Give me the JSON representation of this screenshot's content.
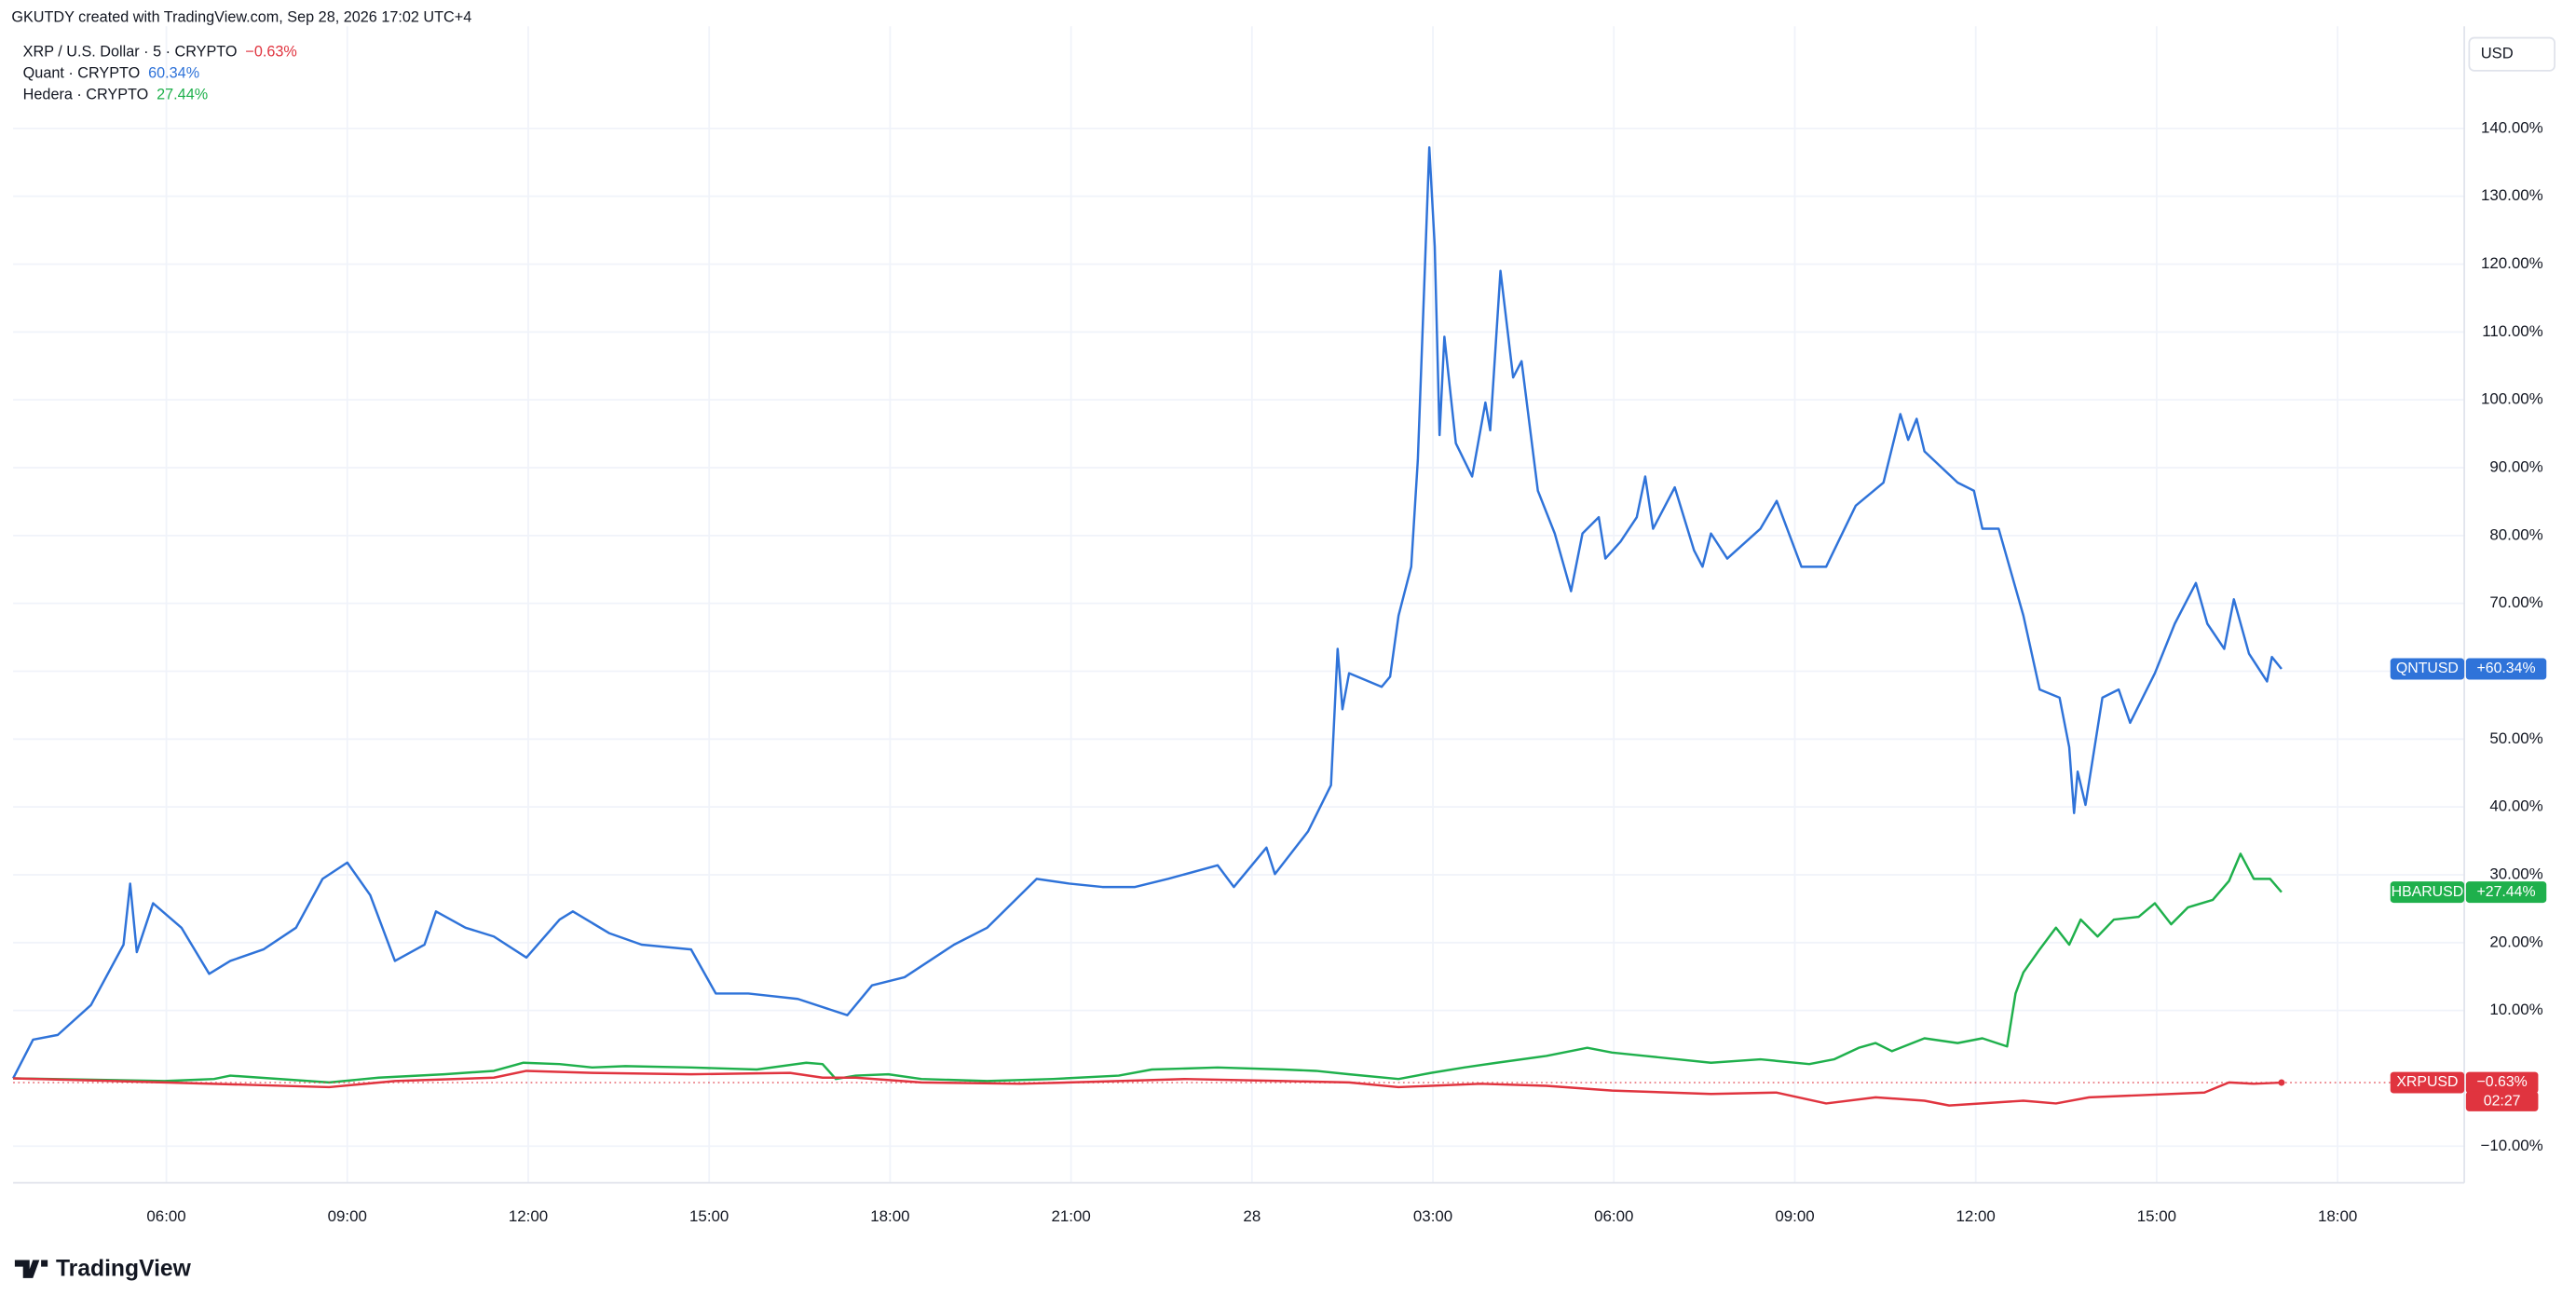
{
  "header": "GKUTDY created with TradingView.com, Sep 28, 2026 17:02 UTC+4",
  "currency_button": "USD",
  "logo": "TradingView",
  "chart_data": {
    "type": "line",
    "xlim": [
      3.46,
      44.1
    ],
    "ylim": [
      -15.4,
      153.6
    ],
    "grid": true,
    "xticks": [
      {
        "value": 6,
        "label": "06:00"
      },
      {
        "value": 9,
        "label": "09:00"
      },
      {
        "value": 12,
        "label": "12:00"
      },
      {
        "value": 15,
        "label": "15:00"
      },
      {
        "value": 18,
        "label": "18:00"
      },
      {
        "value": 21,
        "label": "21:00"
      },
      {
        "value": 24,
        "label": "28"
      },
      {
        "value": 27,
        "label": "03:00"
      },
      {
        "value": 30,
        "label": "06:00"
      },
      {
        "value": 33,
        "label": "09:00"
      },
      {
        "value": 36,
        "label": "12:00"
      },
      {
        "value": 39,
        "label": "15:00"
      },
      {
        "value": 42,
        "label": "18:00"
      }
    ],
    "yticks": [
      {
        "value": -10,
        "label": "−10.00%"
      },
      {
        "value": 10,
        "label": "10.00%"
      },
      {
        "value": 20,
        "label": "20.00%"
      },
      {
        "value": 30,
        "label": "30.00%"
      },
      {
        "value": 40,
        "label": "40.00%"
      },
      {
        "value": 50,
        "label": "50.00%"
      },
      {
        "value": 60,
        "label": "60.00%"
      },
      {
        "value": 70,
        "label": "70.00%"
      },
      {
        "value": 80,
        "label": "80.00%"
      },
      {
        "value": 90,
        "label": "90.00%"
      },
      {
        "value": 100,
        "label": "100.00%"
      },
      {
        "value": 110,
        "label": "110.00%"
      },
      {
        "value": 120,
        "label": "120.00%"
      },
      {
        "value": 130,
        "label": "130.00%"
      },
      {
        "value": 140,
        "label": "140.00%"
      }
    ],
    "series": [
      {
        "name": "XRP / U.S. Dollar · 5 · CRYPTO",
        "legend_value": "−0.63%",
        "ticker": "XRPUSD",
        "change_label": "−0.63%",
        "countdown": "02:27",
        "color": "#e0343f",
        "x": [
          3.46,
          5.97,
          8.7,
          9.79,
          11.43,
          11.97,
          13.06,
          14.7,
          16.34,
          16.88,
          17.43,
          18.52,
          20.16,
          21.79,
          22.88,
          24.52,
          25.61,
          26.43,
          27.79,
          28.88,
          29.97,
          31.61,
          32.7,
          33.52,
          34.34,
          35.15,
          35.56,
          36.79,
          37.33,
          37.88,
          38.7,
          39.79,
          40.2,
          40.61,
          41.07
        ],
        "values": [
          0,
          -0.6,
          -1.3,
          -0.4,
          0.1,
          1.1,
          0.8,
          0.6,
          0.8,
          0.1,
          0.1,
          -0.6,
          -0.8,
          -0.4,
          -0.1,
          -0.4,
          -0.6,
          -1.3,
          -0.8,
          -1.1,
          -1.8,
          -2.3,
          -2.1,
          -3.7,
          -2.8,
          -3.3,
          -4.0,
          -3.3,
          -3.7,
          -2.8,
          -2.5,
          -2.1,
          -0.6,
          -0.8,
          -0.63
        ]
      },
      {
        "name": "Quant · CRYPTO",
        "legend_value": "60.34%",
        "ticker": "QNTUSD",
        "change_label": "+60.34%",
        "color": "#2f73d9",
        "x": [
          3.46,
          3.79,
          4.2,
          4.75,
          5.29,
          5.4,
          5.51,
          5.78,
          6.25,
          6.71,
          7.06,
          7.61,
          8.15,
          8.59,
          9.0,
          9.38,
          9.79,
          10.28,
          10.47,
          10.96,
          11.43,
          11.97,
          12.52,
          12.74,
          13.34,
          13.88,
          14.7,
          15.11,
          15.65,
          16.47,
          17.29,
          17.7,
          18.24,
          19.06,
          19.61,
          20.43,
          20.97,
          21.52,
          22.06,
          22.61,
          23.43,
          23.7,
          24.24,
          24.38,
          24.93,
          25.31,
          25.42,
          25.5,
          25.61,
          26.15,
          26.29,
          26.43,
          26.64,
          26.75,
          26.83,
          26.94,
          27.03,
          27.11,
          27.19,
          27.38,
          27.65,
          27.87,
          27.95,
          28.12,
          28.33,
          28.47,
          28.74,
          29.02,
          29.29,
          29.48,
          29.75,
          29.86,
          30.11,
          30.38,
          30.52,
          30.65,
          31.01,
          31.33,
          31.47,
          31.61,
          31.88,
          32.43,
          32.7,
          33.11,
          33.52,
          34.01,
          34.47,
          34.75,
          34.88,
          35.02,
          35.15,
          35.7,
          35.97,
          36.11,
          36.38,
          36.79,
          37.06,
          37.39,
          37.55,
          37.63,
          37.69,
          37.82,
          38.1,
          38.37,
          38.56,
          38.97,
          39.3,
          39.65,
          39.84,
          40.12,
          40.28,
          40.53,
          40.83,
          40.91,
          41.07
        ],
        "values": [
          0,
          5.7,
          6.4,
          10.8,
          19.7,
          28.7,
          18.6,
          25.8,
          22.2,
          15.4,
          17.3,
          19.0,
          22.2,
          29.4,
          31.8,
          27.0,
          17.3,
          19.7,
          24.6,
          22.2,
          20.9,
          17.8,
          23.4,
          24.6,
          21.4,
          19.7,
          19.0,
          12.5,
          12.5,
          11.7,
          9.3,
          13.7,
          14.9,
          19.7,
          22.2,
          29.4,
          28.7,
          28.2,
          28.2,
          29.4,
          31.4,
          28.2,
          34.0,
          30.1,
          36.4,
          43.2,
          63.3,
          54.4,
          59.7,
          57.7,
          59.2,
          68.2,
          75.4,
          91.2,
          110.5,
          137.2,
          122.6,
          94.8,
          109.3,
          93.6,
          88.7,
          99.6,
          95.5,
          119.0,
          103.3,
          105.7,
          86.6,
          80.3,
          71.8,
          80.3,
          82.7,
          76.6,
          79.1,
          82.7,
          88.7,
          81.0,
          87.1,
          77.8,
          75.4,
          80.3,
          76.6,
          81.0,
          85.1,
          75.4,
          75.4,
          84.4,
          87.8,
          97.9,
          94.1,
          97.2,
          92.4,
          87.8,
          86.6,
          81.0,
          81.0,
          68.2,
          57.3,
          56.1,
          48.8,
          39.1,
          45.2,
          40.3,
          56.1,
          57.3,
          52.4,
          59.7,
          67.0,
          73.0,
          67.0,
          63.3,
          70.6,
          62.6,
          58.5,
          62.1,
          60.34
        ]
      },
      {
        "name": "Hedera · CRYPTO",
        "legend_value": "27.44%",
        "ticker": "HBARUSD",
        "change_label": "+27.44%",
        "color": "#1fb04c",
        "x": [
          3.46,
          5.97,
          6.79,
          7.06,
          8.7,
          9.52,
          10.61,
          11.43,
          11.92,
          12.52,
          13.06,
          13.61,
          14.7,
          15.79,
          16.61,
          16.88,
          17.1,
          17.43,
          17.97,
          18.52,
          19.61,
          20.7,
          21.79,
          22.34,
          23.43,
          24.52,
          25.06,
          25.61,
          26.43,
          26.97,
          27.52,
          28.06,
          28.88,
          29.56,
          29.97,
          30.52,
          31.61,
          32.43,
          33.24,
          33.65,
          34.06,
          34.34,
          34.61,
          35.15,
          35.7,
          36.11,
          36.52,
          36.66,
          36.79,
          37.06,
          37.33,
          37.55,
          37.74,
          38.02,
          38.29,
          38.7,
          38.97,
          39.24,
          39.52,
          39.93,
          40.2,
          40.39,
          40.61,
          40.88,
          41.07
        ],
        "values": [
          0,
          -0.4,
          -0.1,
          0.4,
          -0.6,
          0.1,
          0.6,
          1.1,
          2.3,
          2.1,
          1.6,
          1.8,
          1.6,
          1.3,
          2.3,
          2.1,
          -0.1,
          0.4,
          0.6,
          -0.1,
          -0.4,
          -0.1,
          0.4,
          1.3,
          1.6,
          1.3,
          1.1,
          0.6,
          -0.1,
          0.8,
          1.6,
          2.3,
          3.3,
          4.5,
          3.8,
          3.3,
          2.3,
          2.8,
          2.1,
          2.8,
          4.5,
          5.2,
          4.0,
          5.9,
          5.2,
          5.9,
          4.7,
          12.5,
          15.6,
          19.0,
          22.2,
          19.7,
          23.4,
          20.9,
          23.4,
          23.8,
          25.8,
          22.7,
          25.2,
          26.3,
          29.1,
          33.1,
          29.4,
          29.4,
          27.44
        ]
      }
    ]
  }
}
